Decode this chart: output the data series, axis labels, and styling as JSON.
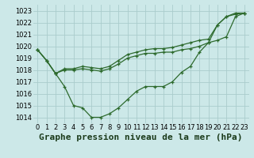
{
  "background_color": "#cce8e8",
  "grid_color": "#aacccc",
  "line_color": "#2d6a2d",
  "marker_color": "#2d6a2d",
  "title": "Graphe pression niveau de la mer (hPa)",
  "ylim": [
    1013.5,
    1023.5
  ],
  "xlim": [
    -0.5,
    23.5
  ],
  "yticks": [
    1014,
    1015,
    1016,
    1017,
    1018,
    1019,
    1020,
    1021,
    1022,
    1023
  ],
  "xticks": [
    0,
    1,
    2,
    3,
    4,
    5,
    6,
    7,
    8,
    9,
    10,
    11,
    12,
    13,
    14,
    15,
    16,
    17,
    18,
    19,
    20,
    21,
    22,
    23
  ],
  "series": [
    [
      1019.7,
      1018.8,
      1017.7,
      1016.6,
      1015.0,
      1014.8,
      1014.0,
      1014.0,
      1014.3,
      1014.8,
      1015.5,
      1016.2,
      1016.6,
      1016.6,
      1016.6,
      1017.0,
      1017.8,
      1018.3,
      1019.5,
      1020.3,
      1021.8,
      1022.5,
      1022.8,
      1022.8
    ],
    [
      1019.7,
      1018.8,
      1017.7,
      1018.0,
      1018.0,
      1018.1,
      1018.0,
      1017.9,
      1018.1,
      1018.5,
      1019.0,
      1019.2,
      1019.4,
      1019.4,
      1019.5,
      1019.5,
      1019.7,
      1019.8,
      1020.0,
      1020.3,
      1020.5,
      1020.8,
      1022.5,
      1022.8
    ],
    [
      1019.7,
      1018.8,
      1017.7,
      1018.1,
      1018.1,
      1018.3,
      1018.2,
      1018.1,
      1018.3,
      1018.8,
      1019.3,
      1019.5,
      1019.7,
      1019.8,
      1019.8,
      1019.9,
      1020.1,
      1020.3,
      1020.5,
      1020.6,
      1021.8,
      1022.5,
      1022.7,
      1022.8
    ]
  ],
  "title_fontsize": 8,
  "tick_fontsize": 6,
  "linewidth": 0.9,
  "markersize": 3.5
}
